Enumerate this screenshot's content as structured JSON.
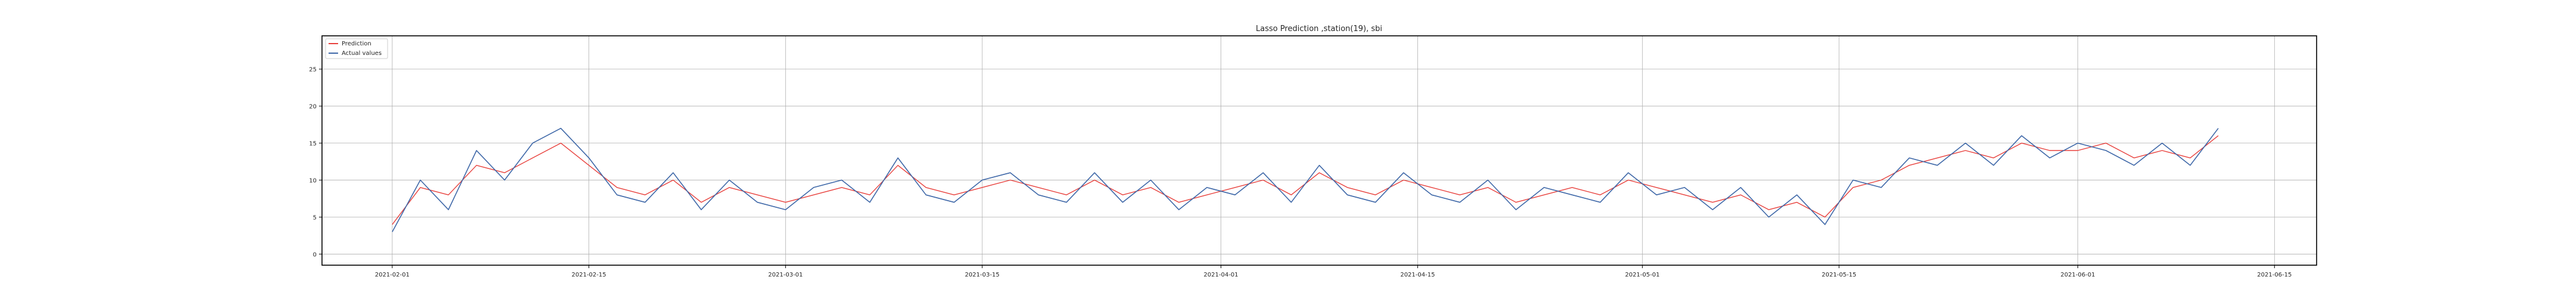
{
  "chart_data": {
    "type": "line",
    "title": "Lasso Prediction ,station(19), sbi",
    "xlabel": "",
    "ylabel": "",
    "x_range": [
      "2021-01-27",
      "2021-06-18"
    ],
    "ylim": [
      -1.5,
      29.5
    ],
    "grid": true,
    "legend_position": "top-left",
    "x_ticks": [
      "2021-02-01",
      "2021-02-15",
      "2021-03-01",
      "2021-03-15",
      "2021-04-01",
      "2021-04-15",
      "2021-05-01",
      "2021-05-15",
      "2021-06-01",
      "2021-06-15"
    ],
    "y_ticks": [
      0,
      5,
      10,
      15,
      20,
      25
    ],
    "series": [
      {
        "name": "Prediction",
        "color": "#e8413d",
        "x": [
          "2021-02-01",
          "2021-02-03",
          "2021-02-05",
          "2021-02-07",
          "2021-02-09",
          "2021-02-11",
          "2021-02-13",
          "2021-02-15",
          "2021-02-17",
          "2021-02-19",
          "2021-02-21",
          "2021-02-23",
          "2021-02-25",
          "2021-02-27",
          "2021-03-01",
          "2021-03-03",
          "2021-03-05",
          "2021-03-07",
          "2021-03-09",
          "2021-03-11",
          "2021-03-13",
          "2021-03-15",
          "2021-03-17",
          "2021-03-19",
          "2021-03-21",
          "2021-03-23",
          "2021-03-25",
          "2021-03-27",
          "2021-03-29",
          "2021-03-31",
          "2021-04-02",
          "2021-04-04",
          "2021-04-06",
          "2021-04-08",
          "2021-04-10",
          "2021-04-12",
          "2021-04-14",
          "2021-04-16",
          "2021-04-18",
          "2021-04-20",
          "2021-04-22",
          "2021-04-24",
          "2021-04-26",
          "2021-04-28",
          "2021-04-30",
          "2021-05-02",
          "2021-05-04",
          "2021-05-06",
          "2021-05-08",
          "2021-05-10",
          "2021-05-12",
          "2021-05-14",
          "2021-05-16",
          "2021-05-18",
          "2021-05-20",
          "2021-05-22",
          "2021-05-24",
          "2021-05-26",
          "2021-05-28",
          "2021-05-30",
          "2021-06-01",
          "2021-06-03",
          "2021-06-05",
          "2021-06-07",
          "2021-06-09",
          "2021-06-11"
        ],
        "values": [
          4,
          9,
          8,
          12,
          11,
          13,
          15,
          12,
          9,
          8,
          10,
          7,
          9,
          8,
          7,
          8,
          9,
          8,
          12,
          9,
          8,
          9,
          10,
          9,
          8,
          10,
          8,
          9,
          7,
          8,
          9,
          10,
          8,
          11,
          9,
          8,
          10,
          9,
          8,
          9,
          7,
          8,
          9,
          8,
          10,
          9,
          8,
          7,
          8,
          6,
          7,
          5,
          9,
          10,
          12,
          13,
          14,
          13,
          15,
          14,
          14,
          15,
          13,
          14,
          13,
          16
        ]
      },
      {
        "name": "Actual values",
        "color": "#3f68a8",
        "x": [
          "2021-02-01",
          "2021-02-03",
          "2021-02-05",
          "2021-02-07",
          "2021-02-09",
          "2021-02-11",
          "2021-02-13",
          "2021-02-15",
          "2021-02-17",
          "2021-02-19",
          "2021-02-21",
          "2021-02-23",
          "2021-02-25",
          "2021-02-27",
          "2021-03-01",
          "2021-03-03",
          "2021-03-05",
          "2021-03-07",
          "2021-03-09",
          "2021-03-11",
          "2021-03-13",
          "2021-03-15",
          "2021-03-17",
          "2021-03-19",
          "2021-03-21",
          "2021-03-23",
          "2021-03-25",
          "2021-03-27",
          "2021-03-29",
          "2021-03-31",
          "2021-04-02",
          "2021-04-04",
          "2021-04-06",
          "2021-04-08",
          "2021-04-10",
          "2021-04-12",
          "2021-04-14",
          "2021-04-16",
          "2021-04-18",
          "2021-04-20",
          "2021-04-22",
          "2021-04-24",
          "2021-04-26",
          "2021-04-28",
          "2021-04-30",
          "2021-05-02",
          "2021-05-04",
          "2021-05-06",
          "2021-05-08",
          "2021-05-10",
          "2021-05-12",
          "2021-05-14",
          "2021-05-16",
          "2021-05-18",
          "2021-05-20",
          "2021-05-22",
          "2021-05-24",
          "2021-05-26",
          "2021-05-28",
          "2021-05-30",
          "2021-06-01",
          "2021-06-03",
          "2021-06-05",
          "2021-06-07",
          "2021-06-09",
          "2021-06-11"
        ],
        "values": [
          3,
          10,
          6,
          14,
          10,
          15,
          17,
          13,
          8,
          7,
          11,
          6,
          10,
          7,
          6,
          9,
          10,
          7,
          13,
          8,
          7,
          10,
          11,
          8,
          7,
          11,
          7,
          10,
          6,
          9,
          8,
          11,
          7,
          12,
          8,
          7,
          11,
          8,
          7,
          10,
          6,
          9,
          8,
          7,
          11,
          8,
          9,
          6,
          9,
          5,
          8,
          4,
          10,
          9,
          13,
          12,
          15,
          12,
          16,
          13,
          15,
          14,
          12,
          15,
          12,
          17
        ]
      }
    ]
  }
}
